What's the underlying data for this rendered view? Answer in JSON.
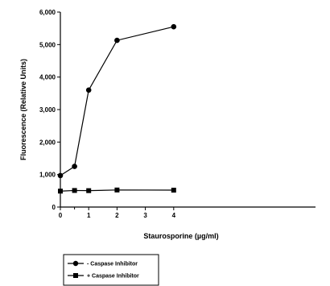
{
  "chart_data": {
    "type": "line",
    "xlabel": "Staurosporine (µg/ml)",
    "ylabel": "Fluorescence (Relative Units)",
    "xlim": [
      0,
      5
    ],
    "ylim": [
      0,
      6000
    ],
    "x_ticks": [
      "0",
      "1",
      "2",
      "3",
      "4"
    ],
    "y_ticks": [
      "0",
      "1,000",
      "2,000",
      "3,000",
      "4,000",
      "5,000",
      "6,000"
    ],
    "grid": false,
    "legend_position": "bottom-left",
    "series": [
      {
        "name": "- Caspase Inhibitor",
        "marker": "circle",
        "color": "#000000",
        "x": [
          0,
          0.5,
          1,
          2,
          4
        ],
        "y": [
          970,
          1250,
          3600,
          5130,
          5550
        ]
      },
      {
        "name": "+ Caspase Inhibitor",
        "marker": "square",
        "color": "#000000",
        "x": [
          0,
          0.5,
          1,
          2,
          4
        ],
        "y": [
          490,
          510,
          505,
          525,
          520
        ]
      }
    ]
  }
}
